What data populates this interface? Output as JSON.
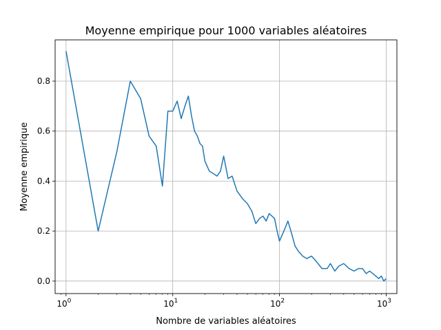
{
  "chart_data": {
    "type": "line",
    "title": "Moyenne empirique pour 1000 variables aléatoires",
    "xlabel": "Nombre de variables aléatoires",
    "ylabel": "Moyenne empirique",
    "xscale": "log",
    "xlim": [
      0.79,
      1260
    ],
    "ylim": [
      -0.05,
      0.965
    ],
    "grid": true,
    "line_color": "#1f77b4",
    "x_ticks": [
      {
        "value": 1,
        "base": "10",
        "exp": "0"
      },
      {
        "value": 10,
        "base": "10",
        "exp": "1"
      },
      {
        "value": 100,
        "base": "10",
        "exp": "2"
      },
      {
        "value": 1000,
        "base": "10",
        "exp": "3"
      }
    ],
    "y_ticks": [
      {
        "value": 0.0,
        "label": "0.0"
      },
      {
        "value": 0.2,
        "label": "0.2"
      },
      {
        "value": 0.4,
        "label": "0.4"
      },
      {
        "value": 0.6,
        "label": "0.6"
      },
      {
        "value": 0.8,
        "label": "0.8"
      }
    ],
    "series": [
      {
        "x": [
          1,
          2,
          3,
          4,
          5,
          6,
          7,
          8,
          9,
          10,
          11,
          12,
          13,
          14,
          15,
          16,
          17,
          18,
          19,
          20,
          22,
          24,
          26,
          28,
          30,
          33,
          36,
          40,
          45,
          50,
          55,
          60,
          65,
          70,
          75,
          80,
          85,
          90,
          95,
          100,
          110,
          120,
          130,
          140,
          150,
          165,
          180,
          200,
          220,
          250,
          280,
          300,
          330,
          360,
          400,
          450,
          500,
          550,
          600,
          650,
          700,
          750,
          800,
          850,
          900,
          950,
          1000
        ],
        "y": [
          0.92,
          0.2,
          0.52,
          0.8,
          0.73,
          0.58,
          0.54,
          0.38,
          0.68,
          0.68,
          0.72,
          0.65,
          0.7,
          0.74,
          0.66,
          0.6,
          0.58,
          0.55,
          0.54,
          0.48,
          0.44,
          0.43,
          0.42,
          0.44,
          0.5,
          0.41,
          0.42,
          0.36,
          0.33,
          0.31,
          0.28,
          0.23,
          0.25,
          0.26,
          0.24,
          0.27,
          0.26,
          0.25,
          0.2,
          0.16,
          0.2,
          0.24,
          0.19,
          0.14,
          0.12,
          0.1,
          0.09,
          0.1,
          0.08,
          0.05,
          0.05,
          0.07,
          0.04,
          0.06,
          0.07,
          0.05,
          0.04,
          0.05,
          0.05,
          0.03,
          0.04,
          0.03,
          0.02,
          0.01,
          0.02,
          0.0,
          0.01
        ]
      }
    ]
  }
}
